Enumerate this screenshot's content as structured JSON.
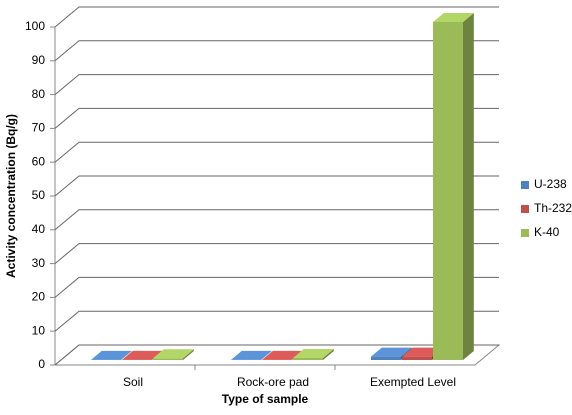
{
  "chart_data": {
    "type": "bar3d",
    "categories": [
      "Soil",
      "Rock-ore pad",
      "Exempted Level"
    ],
    "series": [
      {
        "name": "U-238",
        "color": "#4f81bd",
        "values": [
          0.05,
          0.05,
          1
        ]
      },
      {
        "name": "Th-232",
        "color": "#c0504d",
        "values": [
          0.05,
          0.05,
          1
        ]
      },
      {
        "name": "K-40",
        "color": "#9bbb59",
        "values": [
          0.5,
          0.6,
          100
        ]
      }
    ],
    "ylim": [
      0,
      100
    ],
    "yticks": [
      0,
      10,
      20,
      30,
      40,
      50,
      60,
      70,
      80,
      90,
      100
    ],
    "xlabel": "Type of sample",
    "ylabel": "Activity concentration (Bq/g)",
    "grid": true,
    "legend": "right"
  }
}
